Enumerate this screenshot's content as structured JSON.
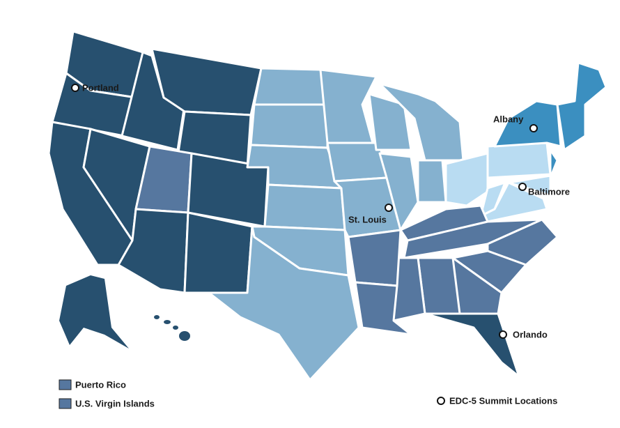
{
  "cities": [
    {
      "label": "Portland"
    },
    {
      "label": "Albany"
    },
    {
      "label": "Baltimore"
    },
    {
      "label": "St. Louis"
    },
    {
      "label": "Orlando"
    }
  ],
  "legend": {
    "territories": [
      "Puerto Rico",
      "U.S. Virgin Islands"
    ],
    "summit": "EDC-5 Summit Locations"
  }
}
